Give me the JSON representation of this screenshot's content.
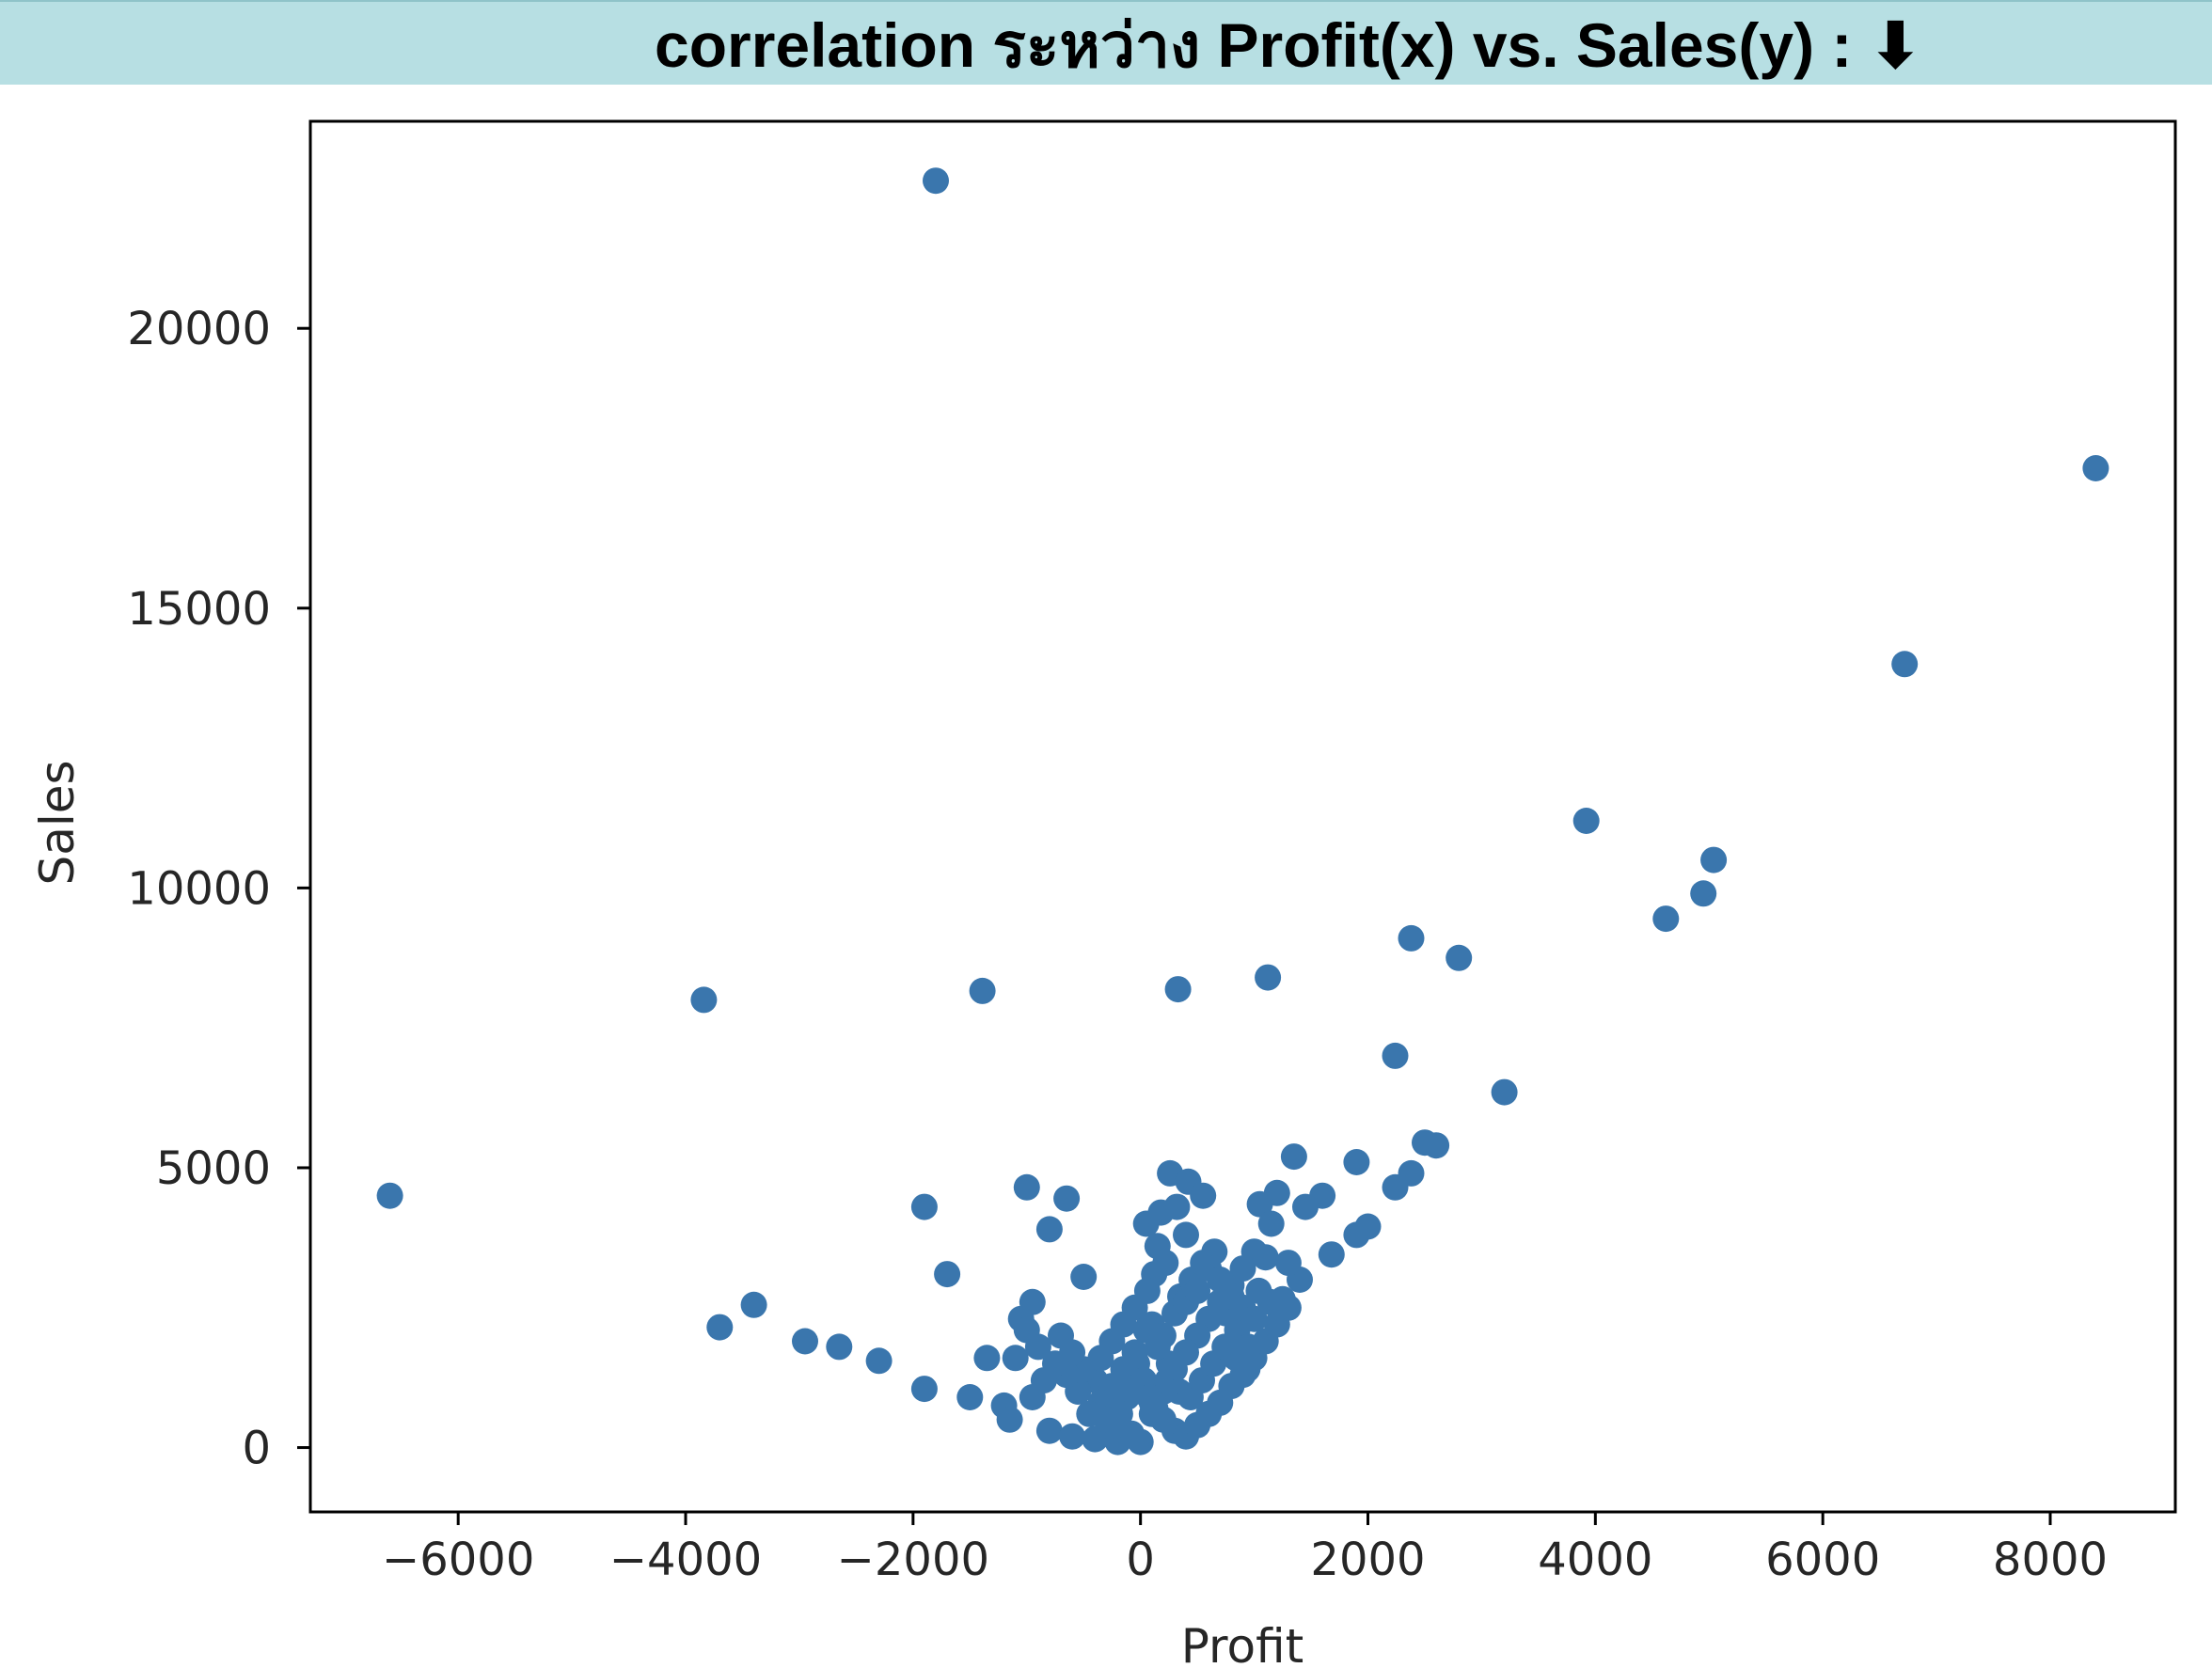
{
  "banner": {
    "text": "correlation ระหว่าง Profit(x) vs. Sales(y) : ⬇",
    "background": "#b7dfe3"
  },
  "chart_data": {
    "type": "scatter",
    "title": "",
    "xlabel": "Profit",
    "ylabel": "Sales",
    "xlim": [
      -7300,
      9100
    ],
    "ylim": [
      -1150,
      23700
    ],
    "xticks": [
      -6000,
      -4000,
      -2000,
      0,
      2000,
      4000,
      6000,
      8000
    ],
    "xtick_labels": [
      "−6000",
      "−4000",
      "−2000",
      "0",
      "2000",
      "4000",
      "6000",
      "8000"
    ],
    "yticks": [
      0,
      5000,
      10000,
      15000,
      20000
    ],
    "ytick_labels": [
      "0",
      "5000",
      "10000",
      "15000",
      "20000"
    ],
    "grid": false,
    "marker_color": "#3a76ad",
    "points": [
      [
        -1800,
        22638
      ],
      [
        8400,
        17500
      ],
      [
        6720,
        14000
      ],
      [
        3920,
        11200
      ],
      [
        5040,
        10500
      ],
      [
        4950,
        9900
      ],
      [
        4620,
        9450
      ],
      [
        2800,
        8750
      ],
      [
        2380,
        9100
      ],
      [
        1120,
        8400
      ],
      [
        330,
        8190
      ],
      [
        -1390,
        8160
      ],
      [
        -3840,
        8000
      ],
      [
        -6600,
        4500
      ],
      [
        3200,
        6350
      ],
      [
        2240,
        7000
      ],
      [
        2600,
        5400
      ],
      [
        2500,
        5450
      ],
      [
        2380,
        4900
      ],
      [
        2240,
        4650
      ],
      [
        2000,
        3950
      ],
      [
        1900,
        3800
      ],
      [
        1680,
        3450
      ],
      [
        1400,
        3000
      ],
      [
        1250,
        2650
      ],
      [
        1900,
        5100
      ],
      [
        1350,
        5200
      ],
      [
        1600,
        4500
      ],
      [
        1450,
        4300
      ],
      [
        1200,
        4550
      ],
      [
        1050,
        4350
      ],
      [
        1150,
        4000
      ],
      [
        1000,
        3500
      ],
      [
        900,
        3200
      ],
      [
        800,
        2900
      ],
      [
        700,
        2600
      ],
      [
        600,
        2300
      ],
      [
        500,
        2000
      ],
      [
        400,
        1700
      ],
      [
        300,
        1400
      ],
      [
        200,
        1000
      ],
      [
        100,
        600
      ],
      [
        0,
        100
      ],
      [
        -80,
        250
      ],
      [
        -200,
        700
      ],
      [
        -300,
        900
      ],
      [
        -400,
        1200
      ],
      [
        -500,
        1400
      ],
      [
        -600,
        1700
      ],
      [
        -700,
        2000
      ],
      [
        -1000,
        4650
      ],
      [
        -650,
        4450
      ],
      [
        -1900,
        4300
      ],
      [
        -800,
        3900
      ],
      [
        -500,
        3050
      ],
      [
        -1700,
        3100
      ],
      [
        -950,
        2600
      ],
      [
        -1050,
        2300
      ],
      [
        -1350,
        1600
      ],
      [
        -1500,
        900
      ],
      [
        -1900,
        1050
      ],
      [
        -2300,
        1550
      ],
      [
        -2650,
        1800
      ],
      [
        -2950,
        1900
      ],
      [
        -3400,
        2550
      ],
      [
        -3700,
        2150
      ],
      [
        -1200,
        750
      ],
      [
        -1150,
        500
      ],
      [
        -800,
        300
      ],
      [
        -600,
        200
      ],
      [
        -400,
        150
      ],
      [
        -200,
        100
      ],
      [
        260,
        4900
      ],
      [
        420,
        4750
      ],
      [
        550,
        4500
      ],
      [
        50,
        4000
      ],
      [
        180,
        4200
      ],
      [
        320,
        4300
      ],
      [
        400,
        3800
      ],
      [
        150,
        3600
      ],
      [
        220,
        3300
      ],
      [
        120,
        3100
      ],
      [
        60,
        2800
      ],
      [
        -50,
        2500
      ],
      [
        -150,
        2200
      ],
      [
        -250,
        1900
      ],
      [
        -350,
        1600
      ],
      [
        -100,
        1300
      ],
      [
        0,
        1000
      ],
      [
        100,
        800
      ],
      [
        200,
        500
      ],
      [
        300,
        300
      ],
      [
        400,
        200
      ],
      [
        500,
        400
      ],
      [
        600,
        600
      ],
      [
        700,
        800
      ],
      [
        800,
        1100
      ],
      [
        900,
        1300
      ],
      [
        1000,
        1600
      ],
      [
        1100,
        1900
      ],
      [
        1200,
        2200
      ],
      [
        1300,
        2500
      ],
      [
        350,
        2700
      ],
      [
        450,
        3000
      ],
      [
        550,
        3300
      ],
      [
        650,
        3500
      ],
      [
        750,
        2400
      ],
      [
        850,
        2100
      ],
      [
        950,
        1800
      ],
      [
        250,
        1500
      ],
      [
        150,
        1800
      ],
      [
        50,
        2100
      ],
      [
        -50,
        1700
      ],
      [
        -150,
        1400
      ],
      [
        -250,
        1100
      ],
      [
        -350,
        800
      ],
      [
        -450,
        600
      ],
      [
        -550,
        1000
      ],
      [
        -650,
        1300
      ],
      [
        -750,
        1500
      ],
      [
        -850,
        1200
      ],
      [
        -950,
        900
      ],
      [
        -1100,
        1600
      ],
      [
        -900,
        1800
      ],
      [
        -1000,
        2100
      ],
      [
        600,
        3200
      ],
      [
        700,
        3000
      ],
      [
        800,
        2700
      ],
      [
        900,
        2500
      ],
      [
        1000,
        2300
      ],
      [
        300,
        2400
      ],
      [
        400,
        2600
      ],
      [
        500,
        2800
      ],
      [
        100,
        2200
      ],
      [
        200,
        2000
      ],
      [
        -30,
        1500
      ],
      [
        30,
        1200
      ],
      [
        80,
        900
      ],
      [
        130,
        700
      ],
      [
        -120,
        900
      ],
      [
        -180,
        600
      ],
      [
        -220,
        400
      ],
      [
        -300,
        500
      ],
      [
        240,
        1200
      ],
      [
        340,
        1000
      ],
      [
        440,
        900
      ],
      [
        540,
        1200
      ],
      [
        640,
        1500
      ],
      [
        740,
        1800
      ],
      [
        840,
        1600
      ],
      [
        940,
        1400
      ],
      [
        1040,
        2800
      ],
      [
        1140,
        2600
      ],
      [
        1300,
        3300
      ],
      [
        1100,
        3400
      ]
    ]
  }
}
